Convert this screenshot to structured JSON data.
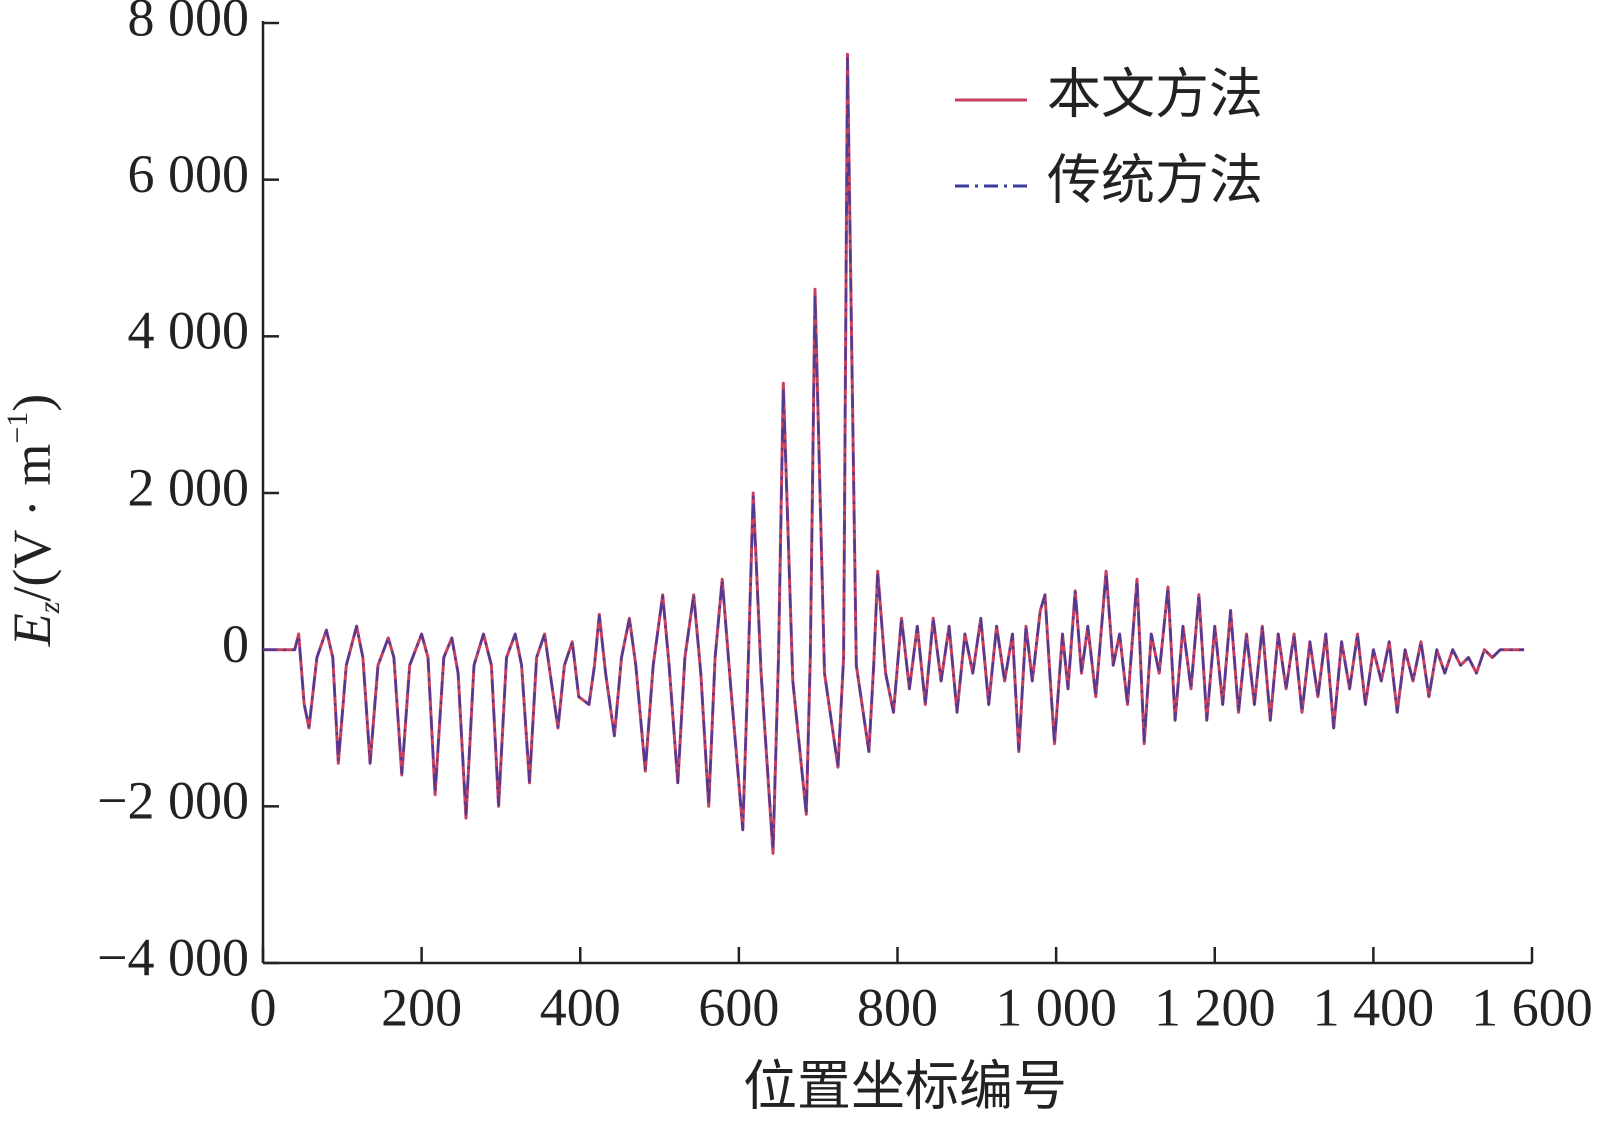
{
  "chart_data": {
    "type": "line",
    "x_label": "位置坐标编号",
    "y_label_parts": [
      "E",
      "z",
      "/(V · m",
      "−1",
      ")"
    ],
    "x": [
      0,
      40,
      45,
      52,
      58,
      68,
      80,
      88,
      95,
      105,
      118,
      126,
      135,
      145,
      158,
      165,
      175,
      185,
      200,
      208,
      217,
      228,
      238,
      246,
      256,
      266,
      278,
      288,
      297,
      307,
      318,
      326,
      336,
      345,
      355,
      362,
      372,
      380,
      390,
      398,
      411,
      418,
      424,
      432,
      443,
      452,
      462,
      470,
      482,
      492,
      504,
      512,
      523,
      532,
      543,
      552,
      562,
      570,
      579,
      590,
      605,
      612,
      618,
      628,
      643,
      650,
      656,
      668,
      685,
      690,
      696,
      708,
      725,
      732,
      737,
      748,
      764,
      770,
      775,
      785,
      795,
      805,
      815,
      825,
      835,
      845,
      855,
      865,
      875,
      885,
      895,
      905,
      915,
      925,
      935,
      945,
      953,
      962,
      970,
      980,
      986,
      992,
      998,
      1008,
      1015,
      1024,
      1032,
      1040,
      1050,
      1063,
      1072,
      1080,
      1090,
      1102,
      1111,
      1120,
      1130,
      1141,
      1150,
      1160,
      1170,
      1180,
      1190,
      1200,
      1210,
      1220,
      1230,
      1240,
      1250,
      1260,
      1270,
      1280,
      1290,
      1300,
      1310,
      1320,
      1330,
      1340,
      1350,
      1360,
      1370,
      1380,
      1390,
      1400,
      1410,
      1420,
      1430,
      1440,
      1450,
      1460,
      1470,
      1480,
      1490,
      1500,
      1510,
      1520,
      1530,
      1540,
      1550,
      1560,
      1590
    ],
    "series": [
      {
        "name": "本文方法",
        "color": "#c8405e",
        "dash": "solid",
        "values": [
          0,
          0,
          200,
          -700,
          -1000,
          -100,
          250,
          -100,
          -1450,
          -200,
          300,
          -100,
          -1450,
          -200,
          150,
          -100,
          -1600,
          -200,
          200,
          -100,
          -1850,
          -100,
          150,
          -300,
          -2150,
          -200,
          200,
          -200,
          -2000,
          -100,
          200,
          -200,
          -1700,
          -100,
          200,
          -300,
          -1000,
          -200,
          100,
          -600,
          -700,
          -200,
          450,
          -300,
          -1100,
          -100,
          400,
          -200,
          -1550,
          -200,
          700,
          -200,
          -1700,
          -100,
          700,
          -300,
          -2000,
          -100,
          900,
          -500,
          -2300,
          -100,
          2000,
          -300,
          -2600,
          -100,
          3400,
          -400,
          -2100,
          -100,
          4600,
          -300,
          -1500,
          -100,
          7600,
          -200,
          -1300,
          -200,
          1000,
          -300,
          -800,
          400,
          -500,
          300,
          -700,
          400,
          -400,
          300,
          -800,
          200,
          -300,
          400,
          -700,
          300,
          -400,
          200,
          -1300,
          300,
          -400,
          500,
          700,
          -300,
          -1200,
          200,
          -500,
          750,
          -300,
          300,
          -600,
          1000,
          -200,
          200,
          -700,
          900,
          -1200,
          200,
          -300,
          800,
          -900,
          300,
          -500,
          700,
          -900,
          300,
          -700,
          500,
          -800,
          200,
          -700,
          300,
          -900,
          200,
          -500,
          200,
          -800,
          100,
          -600,
          200,
          -1000,
          100,
          -500,
          200,
          -700,
          0,
          -400,
          100,
          -800,
          0,
          -400,
          100,
          -600,
          0,
          -300,
          0,
          -200,
          -100,
          -300,
          0,
          -100,
          0,
          0
        ]
      },
      {
        "name": "传统方法",
        "color": "#3a3aa0",
        "dash": "dash-dot",
        "values": [
          0,
          0,
          180,
          -700,
          -980,
          -100,
          250,
          -100,
          -1420,
          -200,
          300,
          -100,
          -1450,
          -200,
          150,
          -100,
          -1580,
          -200,
          200,
          -100,
          -1820,
          -100,
          150,
          -300,
          -2100,
          -200,
          200,
          -200,
          -1980,
          -100,
          200,
          -200,
          -1680,
          -100,
          200,
          -300,
          -1000,
          -200,
          100,
          -600,
          -700,
          -200,
          430,
          -300,
          -1100,
          -100,
          400,
          -200,
          -1520,
          -200,
          680,
          -200,
          -1700,
          -100,
          700,
          -300,
          -1980,
          -100,
          880,
          -500,
          -2300,
          -100,
          1950,
          -300,
          -2550,
          -100,
          3350,
          -400,
          -2100,
          -100,
          4550,
          -300,
          -1500,
          -100,
          7550,
          -200,
          -1300,
          -200,
          980,
          -300,
          -800,
          400,
          -500,
          300,
          -700,
          400,
          -400,
          300,
          -800,
          200,
          -300,
          400,
          -700,
          300,
          -400,
          200,
          -1280,
          300,
          -400,
          500,
          700,
          -300,
          -1200,
          200,
          -500,
          750,
          -300,
          300,
          -600,
          980,
          -200,
          200,
          -700,
          880,
          -1180,
          200,
          -300,
          800,
          -900,
          300,
          -500,
          700,
          -900,
          300,
          -700,
          500,
          -800,
          200,
          -700,
          300,
          -900,
          200,
          -500,
          200,
          -800,
          100,
          -600,
          200,
          -1000,
          100,
          -500,
          200,
          -700,
          0,
          -400,
          100,
          -800,
          0,
          -400,
          100,
          -600,
          0,
          -300,
          0,
          -200,
          -100,
          -300,
          0,
          -100,
          0,
          0
        ]
      }
    ],
    "xlim": [
      0,
      1600
    ],
    "xticks": [
      0,
      200,
      400,
      600,
      800,
      {
        "value": 1000,
        "label": "1 000"
      },
      {
        "value": 1200,
        "label": "1 200"
      },
      {
        "value": 1400,
        "label": "1 400"
      },
      {
        "value": 1600,
        "label": "1 600"
      }
    ],
    "ylim": [
      -4000,
      8000
    ],
    "yticks": [
      {
        "value": -4000,
        "label": "−4 000"
      },
      {
        "value": -2000,
        "label": "−2 000"
      },
      0,
      {
        "value": 2000,
        "label": "2 000"
      },
      {
        "value": 4000,
        "label": "4 000"
      },
      {
        "value": 6000,
        "label": "6 000"
      },
      {
        "value": 8000,
        "label": "8 000"
      }
    ],
    "grid": false,
    "legend": "upper-right"
  }
}
